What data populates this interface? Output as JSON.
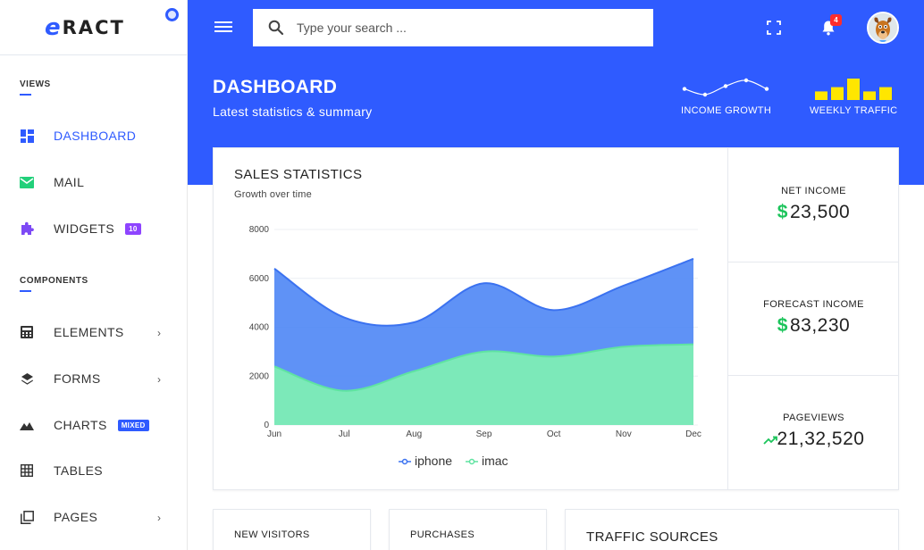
{
  "brand": {
    "logo_letter": "e",
    "logo_text": "RACT",
    "accent": "#2f5bff"
  },
  "sidebar": {
    "sections": [
      {
        "label": "VIEWS"
      },
      {
        "label": "COMPONENTS"
      }
    ],
    "items": [
      {
        "label": "DASHBOARD",
        "icon": "dashboard-icon",
        "active": true
      },
      {
        "label": "MAIL",
        "icon": "mail-icon"
      },
      {
        "label": "WIDGETS",
        "icon": "puzzle-icon",
        "badge": "10",
        "badge_color": "#8e44ff"
      },
      {
        "label": "ELEMENTS",
        "icon": "calculator-icon",
        "chevron": true
      },
      {
        "label": "FORMS",
        "icon": "layers-icon",
        "chevron": true
      },
      {
        "label": "CHARTS",
        "icon": "mountain-chart-icon",
        "badge": "MIXED",
        "badge_color": "#2f5bff"
      },
      {
        "label": "TABLES",
        "icon": "grid-icon"
      },
      {
        "label": "PAGES",
        "icon": "pages-icon",
        "chevron": true
      }
    ]
  },
  "header": {
    "search_placeholder": "Type your search ...",
    "notification_count": "4"
  },
  "hero": {
    "title": "DASHBOARD",
    "subtitle": "Latest statistics & summary",
    "income_growth_label": "INCOME GROWTH",
    "weekly_traffic_label": "WEEKLY TRAFFIC",
    "weekly_traffic_values": [
      2,
      3,
      5,
      2,
      3
    ],
    "income_growth_values": [
      3,
      1,
      4,
      6,
      3
    ]
  },
  "sales": {
    "title": "SALES STATISTICS",
    "subtitle": "Growth over time"
  },
  "chart_data": {
    "type": "area",
    "categories": [
      "Jun",
      "Jul",
      "Aug",
      "Sep",
      "Oct",
      "Nov",
      "Dec"
    ],
    "ylim": [
      0,
      8000
    ],
    "yticks": [
      "0",
      "2000",
      "4000",
      "6000",
      "8000"
    ],
    "series": [
      {
        "name": "iphone",
        "color": "#4e86f5",
        "values": [
          6400,
          4400,
          4200,
          5800,
          4700,
          5700,
          6800
        ]
      },
      {
        "name": "imac",
        "color": "#7deeb5",
        "values": [
          2400,
          1400,
          2200,
          3000,
          2800,
          3200,
          3300
        ]
      }
    ]
  },
  "stats": [
    {
      "label": "NET INCOME",
      "prefix": "$",
      "value": "23,500"
    },
    {
      "label": "FORECAST INCOME",
      "prefix": "$",
      "value": "83,230"
    },
    {
      "label": "PAGEVIEWS",
      "prefix": "",
      "value": "21,32,520"
    }
  ],
  "bottom_cards": {
    "new_visitors": "NEW VISITORS",
    "purchases": "PURCHASES",
    "traffic_sources": "TRAFFIC SOURCES"
  }
}
